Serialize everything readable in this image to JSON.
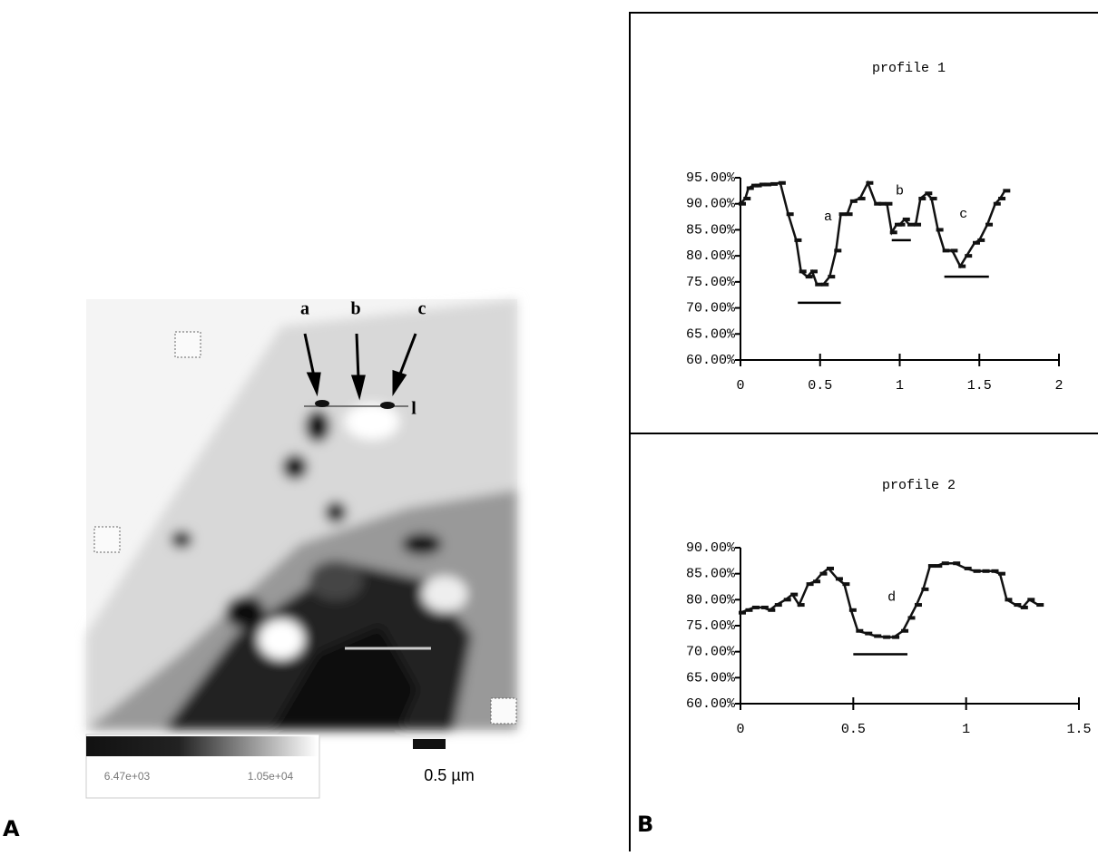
{
  "panel_labels": {
    "left": "A",
    "right": "B"
  },
  "micrograph": {
    "arrow_labels": [
      "a",
      "b",
      "c"
    ],
    "line_label": "l",
    "scale_bar": "0.5 µm",
    "colorbar_labels": [
      "6.47e+03",
      "1.05e+04"
    ]
  },
  "chart_data": [
    {
      "type": "line",
      "title": "profile 1",
      "x": [
        0,
        0.03,
        0.05,
        0.08,
        0.1,
        0.13,
        0.16,
        0.2,
        0.25,
        0.3,
        0.35,
        0.38,
        0.42,
        0.45,
        0.48,
        0.52,
        0.56,
        0.6,
        0.63,
        0.67,
        0.7,
        0.75,
        0.8,
        0.85,
        0.88,
        0.92,
        0.95,
        0.98,
        1.0,
        1.03,
        1.06,
        1.1,
        1.13,
        1.17,
        1.2,
        1.24,
        1.28,
        1.33,
        1.38,
        1.42,
        1.47,
        1.5,
        1.55,
        1.6,
        1.63,
        1.66
      ],
      "values": [
        90,
        91,
        93,
        93.5,
        93.5,
        93.7,
        93.7,
        93.8,
        94,
        88,
        83,
        77,
        76,
        77,
        74.5,
        74.5,
        76,
        81,
        88,
        88,
        90.5,
        91,
        94,
        90,
        90,
        90,
        84.5,
        86,
        86,
        87,
        86,
        86,
        91,
        92,
        91,
        85,
        81,
        81,
        78,
        80,
        82.5,
        83,
        86,
        90,
        91,
        92.5
      ],
      "color": "#111111",
      "xlim": [
        0,
        2
      ],
      "xticks": [
        0,
        0.5,
        1,
        1.5,
        2
      ],
      "ylim": [
        60,
        95
      ],
      "yticks": [
        {
          "value": 60,
          "label": "60.00%"
        },
        {
          "value": 65,
          "label": "65.00%"
        },
        {
          "value": 70,
          "label": "70.00%"
        },
        {
          "value": 75,
          "label": "75.00%"
        },
        {
          "value": 80,
          "label": "80.00%"
        },
        {
          "value": 85,
          "label": "85.00%"
        },
        {
          "value": 90,
          "label": "90.00%"
        },
        {
          "value": 95,
          "label": "95.00%"
        }
      ],
      "annotations": [
        {
          "text": "a",
          "x": 0.55,
          "y": 87.5
        },
        {
          "text": "b",
          "x": 1.0,
          "y": 92.5
        },
        {
          "text": "c",
          "x": 1.4,
          "y": 88
        }
      ],
      "ranges": [
        {
          "x": [
            0.36,
            0.63
          ],
          "y": 71
        },
        {
          "x": [
            0.95,
            1.07
          ],
          "y": 83
        },
        {
          "x": [
            1.28,
            1.56
          ],
          "y": 76
        }
      ]
    },
    {
      "type": "line",
      "title": "profile 2",
      "x": [
        0,
        0.03,
        0.06,
        0.1,
        0.13,
        0.16,
        0.2,
        0.23,
        0.26,
        0.3,
        0.33,
        0.36,
        0.39,
        0.43,
        0.46,
        0.49,
        0.52,
        0.56,
        0.6,
        0.64,
        0.68,
        0.72,
        0.75,
        0.78,
        0.81,
        0.84,
        0.87,
        0.9,
        0.95,
        1.0,
        1.04,
        1.08,
        1.12,
        1.15,
        1.18,
        1.22,
        1.25,
        1.28,
        1.32
      ],
      "values": [
        77.5,
        78,
        78.5,
        78.5,
        78,
        79,
        80,
        81,
        79,
        83,
        83.5,
        85,
        86,
        84,
        83,
        78,
        74,
        73.5,
        73,
        72.8,
        72.8,
        74,
        76.5,
        79,
        82,
        86.5,
        86.5,
        87,
        87,
        86,
        85.5,
        85.5,
        85.5,
        85,
        80,
        79,
        78.5,
        80,
        79
      ],
      "color": "#111111",
      "xlim": [
        0,
        1.5
      ],
      "xticks": [
        0,
        0.5,
        1,
        1.5
      ],
      "ylim": [
        60,
        90
      ],
      "yticks": [
        {
          "value": 60,
          "label": "60.00%"
        },
        {
          "value": 65,
          "label": "65.00%"
        },
        {
          "value": 70,
          "label": "70.00%"
        },
        {
          "value": 75,
          "label": "75.00%"
        },
        {
          "value": 80,
          "label": "80.00%"
        },
        {
          "value": 85,
          "label": "85.00%"
        },
        {
          "value": 90,
          "label": "90.00%"
        }
      ],
      "annotations": [
        {
          "text": "d",
          "x": 0.67,
          "y": 80.5
        }
      ],
      "ranges": [
        {
          "x": [
            0.5,
            0.74
          ],
          "y": 69.5
        }
      ]
    }
  ]
}
